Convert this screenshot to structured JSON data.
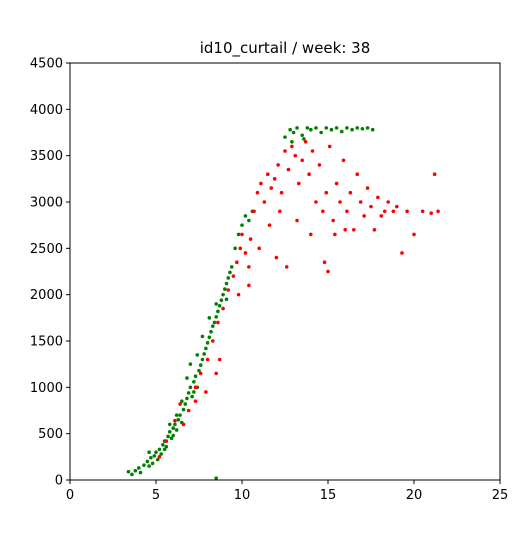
{
  "chart_data": {
    "type": "scatter",
    "title": "id10_curtail / week: 38",
    "xlabel": "",
    "ylabel": "",
    "xlim": [
      0,
      25
    ],
    "ylim": [
      0,
      4500
    ],
    "xticks": [
      0,
      5,
      10,
      15,
      20,
      25
    ],
    "yticks": [
      0,
      500,
      1000,
      1500,
      2000,
      2500,
      3000,
      3500,
      4000,
      4500
    ],
    "grid": false,
    "legend": "none",
    "colors": {
      "green_series": "#008000",
      "red_series": "#ff0000"
    },
    "series": [
      {
        "color": "green",
        "points": [
          [
            3.4,
            90
          ],
          [
            3.6,
            60
          ],
          [
            3.8,
            100
          ],
          [
            4.0,
            130
          ],
          [
            4.1,
            80
          ],
          [
            4.3,
            160
          ],
          [
            4.5,
            200
          ],
          [
            4.6,
            150
          ],
          [
            4.7,
            240
          ],
          [
            4.8,
            180
          ],
          [
            4.9,
            260
          ],
          [
            5.0,
            300
          ],
          [
            5.1,
            220
          ],
          [
            5.2,
            330
          ],
          [
            5.3,
            280
          ],
          [
            5.4,
            380
          ],
          [
            5.5,
            420
          ],
          [
            5.6,
            360
          ],
          [
            5.7,
            470
          ],
          [
            5.8,
            520
          ],
          [
            5.9,
            450
          ],
          [
            6.0,
            560
          ],
          [
            6.1,
            600
          ],
          [
            6.2,
            540
          ],
          [
            6.3,
            650
          ],
          [
            6.4,
            700
          ],
          [
            6.5,
            620
          ],
          [
            6.6,
            760
          ],
          [
            6.7,
            820
          ],
          [
            6.8,
            880
          ],
          [
            6.9,
            940
          ],
          [
            7.0,
            1000
          ],
          [
            7.1,
            900
          ],
          [
            7.2,
            1060
          ],
          [
            7.3,
            1120
          ],
          [
            7.4,
            1000
          ],
          [
            7.5,
            1180
          ],
          [
            7.6,
            1240
          ],
          [
            7.7,
            1300
          ],
          [
            7.8,
            1360
          ],
          [
            7.9,
            1420
          ],
          [
            8.0,
            1480
          ],
          [
            8.1,
            1540
          ],
          [
            8.2,
            1600
          ],
          [
            8.3,
            1660
          ],
          [
            8.4,
            1700
          ],
          [
            8.5,
            1760
          ],
          [
            8.6,
            1820
          ],
          [
            8.7,
            1880
          ],
          [
            8.8,
            1940
          ],
          [
            8.9,
            2000
          ],
          [
            9.0,
            2060
          ],
          [
            9.1,
            2120
          ],
          [
            9.2,
            2180
          ],
          [
            9.3,
            2240
          ],
          [
            9.4,
            2300
          ],
          [
            9.6,
            2500
          ],
          [
            9.8,
            2650
          ],
          [
            10.0,
            2750
          ],
          [
            10.2,
            2850
          ],
          [
            10.4,
            2800
          ],
          [
            10.6,
            2900
          ],
          [
            6.2,
            700
          ],
          [
            6.8,
            1100
          ],
          [
            7.4,
            1350
          ],
          [
            7.0,
            1250
          ],
          [
            6.0,
            480
          ],
          [
            5.5,
            330
          ],
          [
            8.1,
            1750
          ],
          [
            7.7,
            1550
          ],
          [
            8.5,
            1900
          ],
          [
            9.1,
            1950
          ],
          [
            5.8,
            600
          ],
          [
            6.5,
            850
          ],
          [
            7.2,
            950
          ],
          [
            4.6,
            300
          ],
          [
            8.5,
            20
          ],
          [
            12.5,
            3700
          ],
          [
            12.8,
            3780
          ],
          [
            13.0,
            3750
          ],
          [
            13.2,
            3800
          ],
          [
            13.5,
            3720
          ],
          [
            13.8,
            3800
          ],
          [
            14.0,
            3780
          ],
          [
            14.3,
            3800
          ],
          [
            14.6,
            3750
          ],
          [
            14.9,
            3800
          ],
          [
            15.2,
            3780
          ],
          [
            15.5,
            3800
          ],
          [
            15.8,
            3760
          ],
          [
            16.1,
            3800
          ],
          [
            16.4,
            3780
          ],
          [
            16.7,
            3800
          ],
          [
            17.0,
            3790
          ],
          [
            17.3,
            3800
          ],
          [
            17.6,
            3780
          ],
          [
            12.9,
            3650
          ],
          [
            13.6,
            3680
          ]
        ]
      },
      {
        "color": "red",
        "points": [
          [
            5.2,
            250
          ],
          [
            5.6,
            420
          ],
          [
            6.1,
            640
          ],
          [
            6.4,
            820
          ],
          [
            6.9,
            750
          ],
          [
            7.3,
            1000
          ],
          [
            7.6,
            1150
          ],
          [
            8.0,
            1300
          ],
          [
            8.3,
            1500
          ],
          [
            8.6,
            1700
          ],
          [
            8.9,
            1850
          ],
          [
            9.2,
            2050
          ],
          [
            9.5,
            2200
          ],
          [
            9.7,
            2350
          ],
          [
            9.9,
            2500
          ],
          [
            10.0,
            2650
          ],
          [
            10.2,
            2450
          ],
          [
            10.4,
            2300
          ],
          [
            10.5,
            2600
          ],
          [
            10.7,
            2900
          ],
          [
            10.9,
            3100
          ],
          [
            11.1,
            3200
          ],
          [
            11.3,
            3000
          ],
          [
            11.5,
            3300
          ],
          [
            11.7,
            3150
          ],
          [
            11.9,
            3250
          ],
          [
            12.1,
            3400
          ],
          [
            12.3,
            3100
          ],
          [
            12.5,
            3550
          ],
          [
            12.7,
            3350
          ],
          [
            12.9,
            3600
          ],
          [
            13.1,
            3500
          ],
          [
            13.3,
            3200
          ],
          [
            13.5,
            3450
          ],
          [
            13.7,
            3650
          ],
          [
            13.9,
            3300
          ],
          [
            14.1,
            3550
          ],
          [
            14.3,
            3000
          ],
          [
            14.5,
            3400
          ],
          [
            14.7,
            2900
          ],
          [
            14.9,
            3100
          ],
          [
            15.1,
            3600
          ],
          [
            15.3,
            2800
          ],
          [
            15.5,
            3200
          ],
          [
            15.7,
            3000
          ],
          [
            15.9,
            3450
          ],
          [
            16.1,
            2900
          ],
          [
            16.3,
            3100
          ],
          [
            16.5,
            2700
          ],
          [
            16.7,
            3300
          ],
          [
            16.9,
            3000
          ],
          [
            17.1,
            2850
          ],
          [
            17.3,
            3150
          ],
          [
            17.5,
            2950
          ],
          [
            17.7,
            2700
          ],
          [
            17.9,
            3050
          ],
          [
            18.1,
            2850
          ],
          [
            18.3,
            2900
          ],
          [
            18.5,
            3000
          ],
          [
            18.8,
            2900
          ],
          [
            19.0,
            2950
          ],
          [
            19.3,
            2450
          ],
          [
            19.6,
            2900
          ],
          [
            20.0,
            2650
          ],
          [
            20.5,
            2900
          ],
          [
            21.0,
            2880
          ],
          [
            21.2,
            3300
          ],
          [
            21.4,
            2900
          ],
          [
            12.0,
            2400
          ],
          [
            12.6,
            2300
          ],
          [
            13.2,
            2800
          ],
          [
            14.0,
            2650
          ],
          [
            14.8,
            2350
          ],
          [
            15.0,
            2250
          ],
          [
            15.4,
            2650
          ],
          [
            16.0,
            2700
          ],
          [
            12.2,
            2900
          ],
          [
            11.6,
            2750
          ],
          [
            11.0,
            2500
          ],
          [
            10.4,
            2100
          ],
          [
            9.8,
            2000
          ],
          [
            8.7,
            1300
          ],
          [
            7.3,
            850
          ],
          [
            8.5,
            1150
          ],
          [
            7.9,
            950
          ],
          [
            6.6,
            600
          ]
        ]
      }
    ]
  }
}
